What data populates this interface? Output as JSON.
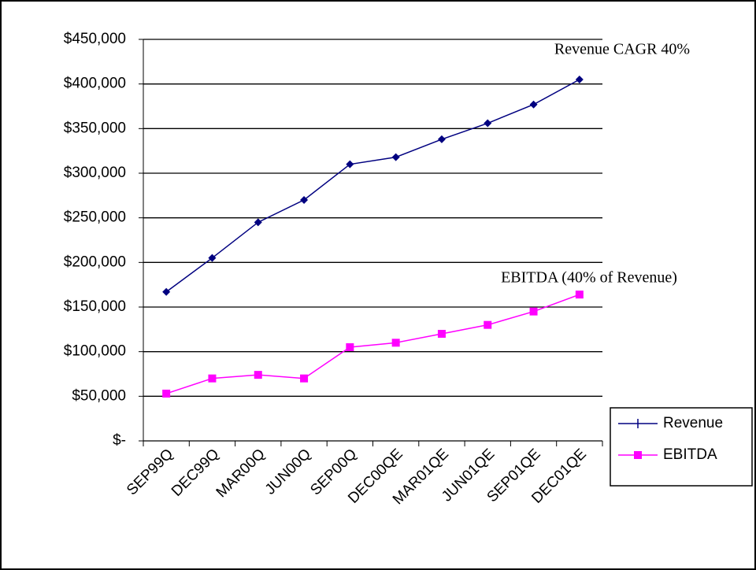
{
  "chart_data": {
    "type": "line",
    "annotations": [
      "Revenue CAGR 40%",
      "EBITDA (40% of Revenue)"
    ],
    "categories": [
      "SEP99Q",
      "DEC99Q",
      "MAR00Q",
      "JUN00Q",
      "SEP00Q",
      "DEC00QE",
      "MAR01QE",
      "JUN01QE",
      "SEP01QE",
      "DEC01QE"
    ],
    "series": [
      {
        "name": "Revenue",
        "color": "#000080",
        "values": [
          167000,
          205000,
          245000,
          270000,
          310000,
          318000,
          338000,
          356000,
          377000,
          405000
        ]
      },
      {
        "name": "EBITDA",
        "color": "#ff00ff",
        "values": [
          53000,
          70000,
          74000,
          70000,
          105000,
          110000,
          120000,
          130000,
          145000,
          164000
        ]
      }
    ],
    "ylim": [
      0,
      450000
    ],
    "yticks": [
      {
        "value": 0,
        "label": "$-"
      },
      {
        "value": 50000,
        "label": "$50,000"
      },
      {
        "value": 100000,
        "label": "$100,000"
      },
      {
        "value": 150000,
        "label": "$150,000"
      },
      {
        "value": 200000,
        "label": "$200,000"
      },
      {
        "value": 250000,
        "label": "$250,000"
      },
      {
        "value": 300000,
        "label": "$300,000"
      },
      {
        "value": 350000,
        "label": "$350,000"
      },
      {
        "value": 400000,
        "label": "$400,000"
      },
      {
        "value": 450000,
        "label": "$450,000"
      }
    ],
    "grid": true,
    "legend": "right"
  }
}
